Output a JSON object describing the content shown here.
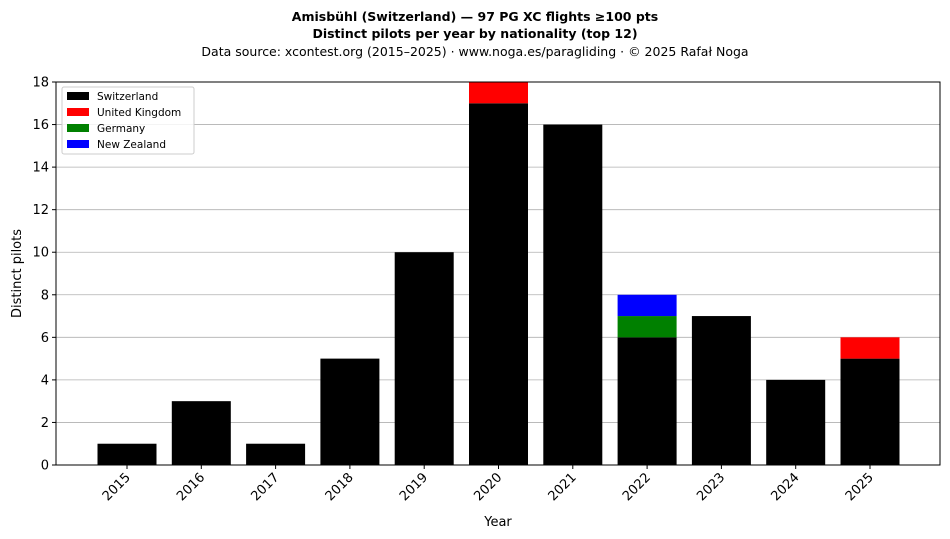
{
  "chart_data": {
    "type": "bar",
    "stacked": true,
    "title_line1": "Amisbühl (Switzerland)  —  97 PG XC flights ≥100 pts",
    "title_line2": "Distinct pilots per year by nationality (top 12)",
    "subtitle": "Data source: xcontest.org (2015–2025)  ·  www.noga.es/paragliding  ·  © 2025 Rafał Noga",
    "xlabel": "Year",
    "ylabel": "Distinct pilots",
    "ylim": [
      0,
      18
    ],
    "yticks": [
      0,
      2,
      4,
      6,
      8,
      10,
      12,
      14,
      16,
      18
    ],
    "grid": "horizontal",
    "legend_position": "top-left",
    "categories": [
      "2015",
      "2016",
      "2017",
      "2018",
      "2019",
      "2020",
      "2021",
      "2022",
      "2023",
      "2024",
      "2025"
    ],
    "series": [
      {
        "name": "Switzerland",
        "color": "#000000",
        "values": [
          1,
          3,
          1,
          5,
          10,
          17,
          16,
          6,
          7,
          4,
          5
        ]
      },
      {
        "name": "United Kingdom",
        "color": "#ff0000",
        "values": [
          0,
          0,
          0,
          0,
          0,
          1,
          0,
          0,
          0,
          0,
          1
        ]
      },
      {
        "name": "Germany",
        "color": "#008000",
        "values": [
          0,
          0,
          0,
          0,
          0,
          0,
          0,
          1,
          0,
          0,
          0
        ]
      },
      {
        "name": "New Zealand",
        "color": "#0000ff",
        "values": [
          0,
          0,
          0,
          0,
          0,
          0,
          0,
          1,
          0,
          0,
          0
        ]
      }
    ]
  }
}
